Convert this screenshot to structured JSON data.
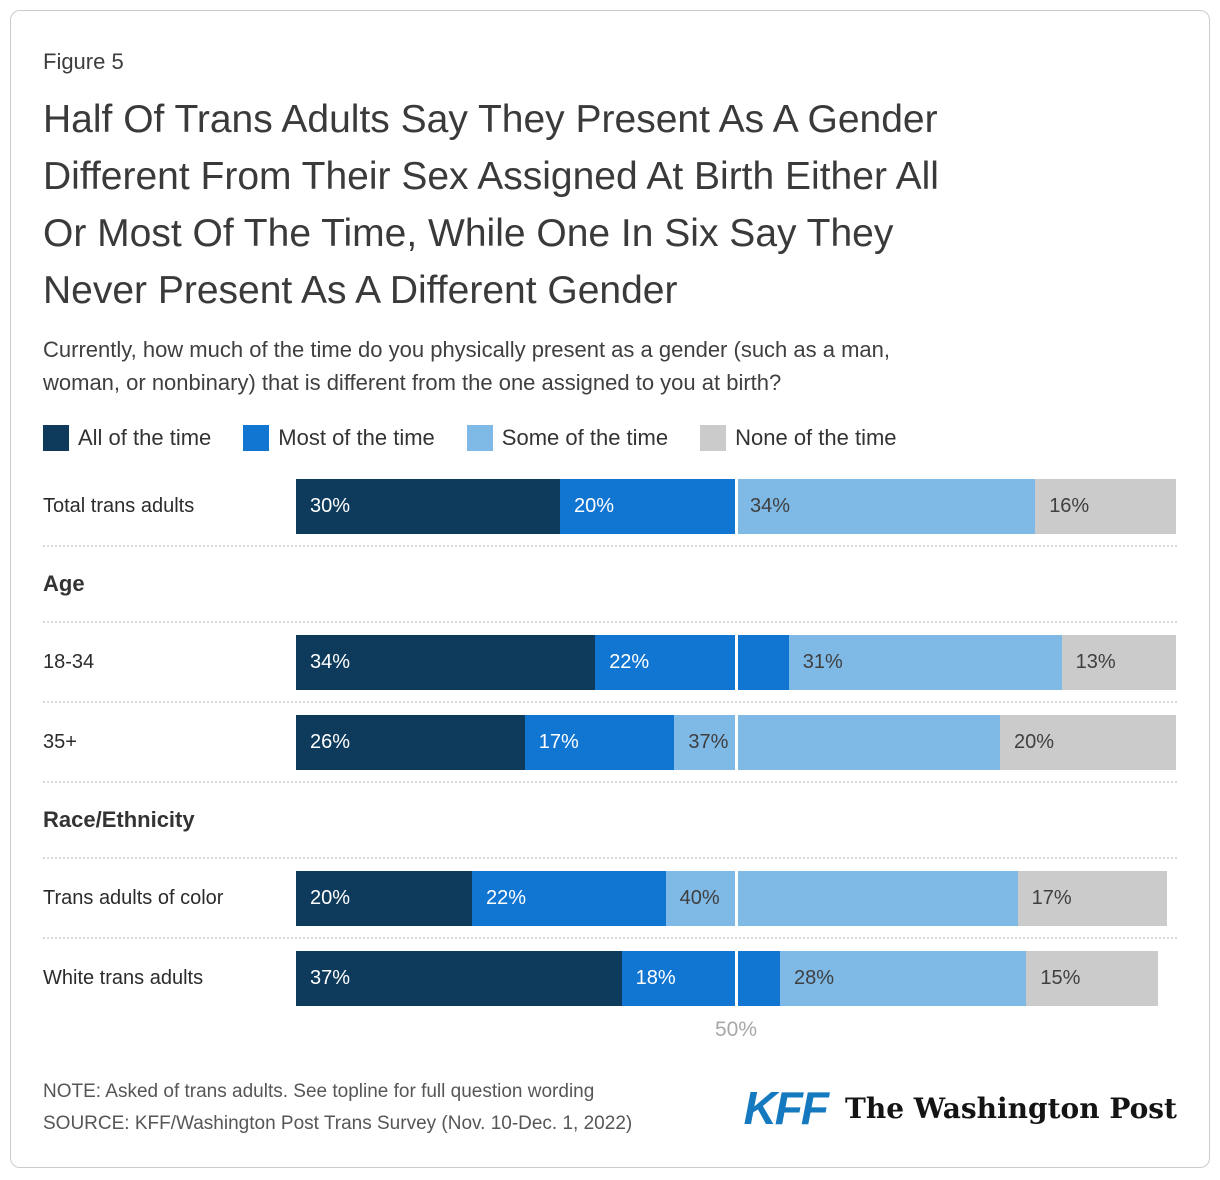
{
  "figure_label": "Figure 5",
  "title_lines": [
    "Half Of Trans Adults Say They Present As A Gender",
    "Different From Their Sex Assigned At Birth Either All",
    "Or Most Of The Time, While One In Six Say They",
    "Never Present As A Different Gender"
  ],
  "subtitle_lines": [
    "Currently, how much of the time do you physically present as a gender (such as a man,",
    "woman, or nonbinary) that is different from the one assigned to you at birth?"
  ],
  "sections": {
    "age": "Age",
    "race": "Race/Ethnicity"
  },
  "footer": {
    "note": "NOTE: Asked of trans adults. See topline for full question wording",
    "source": "SOURCE: KFF/Washington Post Trans Survey (Nov. 10-Dec. 1, 2022)",
    "kff_logo": "KFF",
    "wapo_logo": "The Washington Post"
  },
  "chart_data": {
    "type": "bar",
    "orientation": "horizontal-stacked",
    "legend": [
      "All of the time",
      "Most of the time",
      "Some of the time",
      "None of the time"
    ],
    "series_colors": [
      "#0e3a5c",
      "#1175d2",
      "#7fb9e6",
      "#cbcbcb"
    ],
    "value_suffix": "%",
    "x_axis": {
      "min": 0,
      "max": 100,
      "gridline_at": 50,
      "tick_label": "50%"
    },
    "rows": [
      {
        "label": "Total trans adults",
        "group": null,
        "values": [
          30,
          20,
          34,
          16
        ]
      },
      {
        "label": "18-34",
        "group": "Age",
        "values": [
          34,
          22,
          31,
          13
        ]
      },
      {
        "label": "35+",
        "group": "Age",
        "values": [
          26,
          17,
          37,
          20
        ]
      },
      {
        "label": "Trans adults of color",
        "group": "Race/Ethnicity",
        "values": [
          20,
          22,
          40,
          17
        ]
      },
      {
        "label": "White trans adults",
        "group": "Race/Ethnicity",
        "values": [
          37,
          18,
          28,
          15
        ]
      }
    ]
  }
}
